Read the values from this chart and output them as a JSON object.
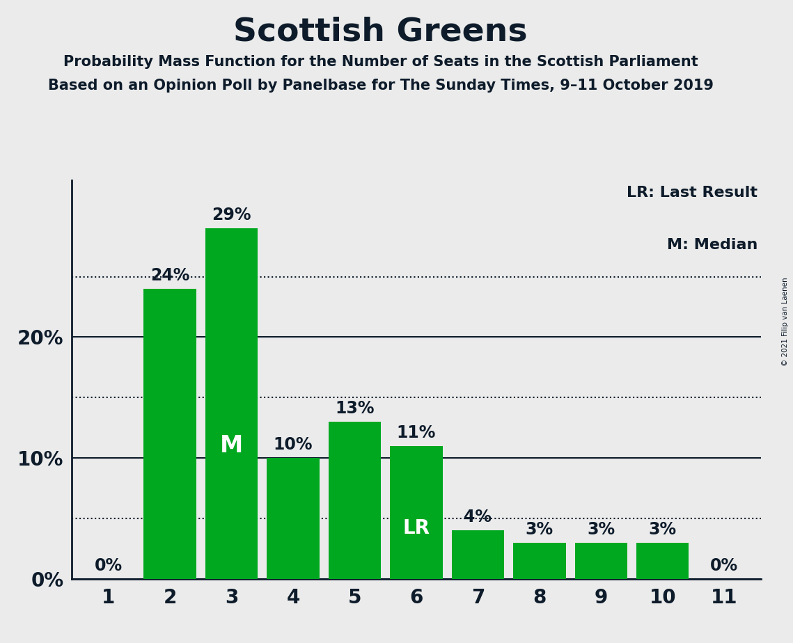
{
  "title": "Scottish Greens",
  "subtitle1": "Probability Mass Function for the Number of Seats in the Scottish Parliament",
  "subtitle2": "Based on an Opinion Poll by Panelbase for The Sunday Times, 9–11 October 2019",
  "copyright": "© 2021 Filip van Laenen",
  "categories": [
    1,
    2,
    3,
    4,
    5,
    6,
    7,
    8,
    9,
    10,
    11
  ],
  "values": [
    0,
    24,
    29,
    10,
    13,
    11,
    4,
    3,
    3,
    3,
    0
  ],
  "bar_color": "#00A820",
  "background_color": "#EBEBEB",
  "text_color": "#0D1B2A",
  "legend_lr": "LR: Last Result",
  "legend_m": "M: Median",
  "median_bar": 3,
  "lr_bar": 6,
  "yticks": [
    0,
    10,
    20
  ],
  "dotted_lines": [
    5,
    15,
    25
  ],
  "ylim": [
    0,
    33
  ]
}
